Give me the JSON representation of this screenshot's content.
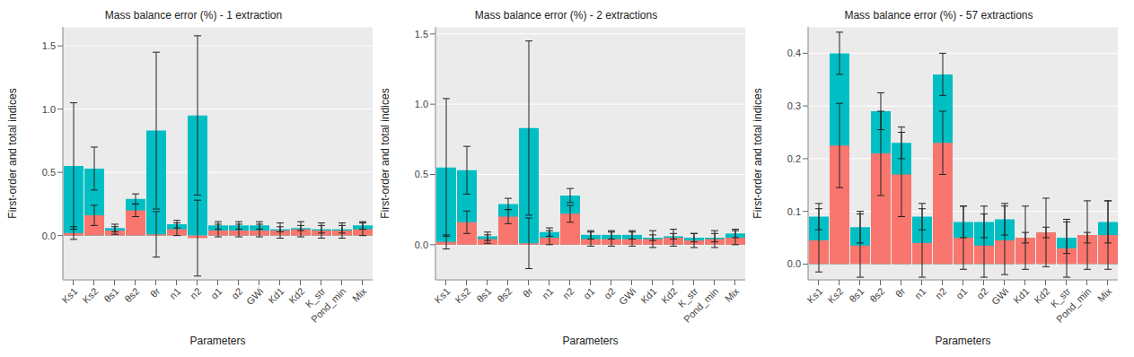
{
  "chart_data": [
    {
      "type": "bar",
      "title": "Mass balance error (%) - 1 extraction",
      "xlabel": "Parameters",
      "ylabel": "First-order and total indices",
      "categories": [
        "Ks1",
        "Ks2",
        "θs1",
        "θs2",
        "θr",
        "n1",
        "n2",
        "α1",
        "α2",
        "GWi",
        "Kd1",
        "Kd2",
        "K_str",
        "Pond_min",
        "Mix"
      ],
      "series": [
        {
          "color": "#00bfc4",
          "values": [
            0.55,
            0.53,
            0.06,
            0.29,
            0.83,
            0.09,
            0.95,
            0.08,
            0.08,
            0.08,
            0.05,
            0.06,
            0.05,
            0.05,
            0.08
          ],
          "error": [
            0.5,
            0.17,
            0.03,
            0.04,
            0.62,
            0.03,
            0.63,
            0.03,
            0.03,
            0.03,
            0.02,
            0.02,
            0.03,
            0.03,
            0.03
          ]
        },
        {
          "color": "#f8766d",
          "values": [
            0.02,
            0.16,
            0.04,
            0.2,
            0.01,
            0.05,
            -0.02,
            0.04,
            0.04,
            0.04,
            0.04,
            0.05,
            0.04,
            0.04,
            0.05
          ],
          "error": [
            0.05,
            0.08,
            0.03,
            0.05,
            0.18,
            0.05,
            0.3,
            0.05,
            0.05,
            0.05,
            0.06,
            0.06,
            0.06,
            0.06,
            0.05
          ]
        }
      ],
      "ylim": [
        -0.35,
        1.65
      ],
      "yticks": [
        {
          "value": 0,
          "label": "0.0"
        },
        {
          "value": 0.5,
          "label": "0.5"
        },
        {
          "value": 1,
          "label": "1.0"
        },
        {
          "value": 1.5,
          "label": "1.5"
        }
      ],
      "grid": true
    },
    {
      "type": "bar",
      "title": "Mass balance error (%) - 2 extractions",
      "xlabel": "Parameters",
      "ylabel": "First-order and total indices",
      "categories": [
        "Ks1",
        "Ks2",
        "θs1",
        "θs2",
        "θr",
        "n1",
        "n2",
        "α1",
        "α2",
        "GWi",
        "Kd1",
        "Kd2",
        "K_str",
        "Pond_min",
        "Mix"
      ],
      "series": [
        {
          "color": "#00bfc4",
          "values": [
            0.55,
            0.53,
            0.06,
            0.29,
            0.83,
            0.09,
            0.35,
            0.07,
            0.07,
            0.07,
            0.05,
            0.06,
            0.05,
            0.05,
            0.08
          ],
          "error": [
            0.49,
            0.17,
            0.03,
            0.04,
            0.62,
            0.03,
            0.05,
            0.03,
            0.03,
            0.03,
            0.02,
            0.02,
            0.03,
            0.03,
            0.03
          ]
        },
        {
          "color": "#f8766d",
          "values": [
            0.02,
            0.16,
            0.04,
            0.2,
            0.01,
            0.05,
            0.22,
            0.04,
            0.04,
            0.04,
            0.04,
            0.05,
            0.03,
            0.04,
            0.05
          ],
          "error": [
            0.05,
            0.08,
            0.03,
            0.05,
            0.18,
            0.05,
            0.06,
            0.05,
            0.05,
            0.05,
            0.06,
            0.06,
            0.05,
            0.06,
            0.05
          ]
        }
      ],
      "ylim": [
        -0.25,
        1.55
      ],
      "yticks": [
        {
          "value": 0,
          "label": "0.0"
        },
        {
          "value": 0.5,
          "label": "0.5"
        },
        {
          "value": 1,
          "label": "1.0"
        },
        {
          "value": 1.5,
          "label": "1.5"
        }
      ],
      "grid": true
    },
    {
      "type": "bar",
      "title": "Mass balance error (%) - 57 extractions",
      "xlabel": "Parameters",
      "ylabel": "First-order and total indices",
      "categories": [
        "Ks1",
        "Ks2",
        "θs1",
        "θs2",
        "θr",
        "n1",
        "n2",
        "α1",
        "α2",
        "GWi",
        "Kd1",
        "Kd2",
        "K_str",
        "Pond_min",
        "Mix"
      ],
      "series": [
        {
          "color": "#00bfc4",
          "values": [
            0.09,
            0.4,
            0.07,
            0.29,
            0.23,
            0.09,
            0.36,
            0.08,
            0.08,
            0.085,
            0.05,
            0.06,
            0.05,
            0.05,
            0.08
          ],
          "error": [
            0.025,
            0.04,
            0.03,
            0.035,
            0.03,
            0.025,
            0.04,
            0.03,
            0.03,
            0.03,
            0.01,
            0.01,
            0.03,
            0.01,
            0.04
          ]
        },
        {
          "color": "#f8766d",
          "values": [
            0.045,
            0.225,
            0.035,
            0.21,
            0.17,
            0.04,
            0.23,
            0.05,
            0.035,
            0.045,
            0.05,
            0.06,
            0.03,
            0.055,
            0.055
          ],
          "error": [
            0.06,
            0.08,
            0.06,
            0.08,
            0.08,
            0.065,
            0.06,
            0.06,
            0.06,
            0.065,
            0.06,
            0.065,
            0.055,
            0.065,
            0.065
          ]
        }
      ],
      "ylim": [
        -0.03,
        0.45
      ],
      "yticks": [
        {
          "value": 0,
          "label": "0.0"
        },
        {
          "value": 0.1,
          "label": "0.1"
        },
        {
          "value": 0.2,
          "label": "0.2"
        },
        {
          "value": 0.3,
          "label": "0.3"
        },
        {
          "value": 0.4,
          "label": "0.4"
        }
      ],
      "grid": true
    }
  ]
}
